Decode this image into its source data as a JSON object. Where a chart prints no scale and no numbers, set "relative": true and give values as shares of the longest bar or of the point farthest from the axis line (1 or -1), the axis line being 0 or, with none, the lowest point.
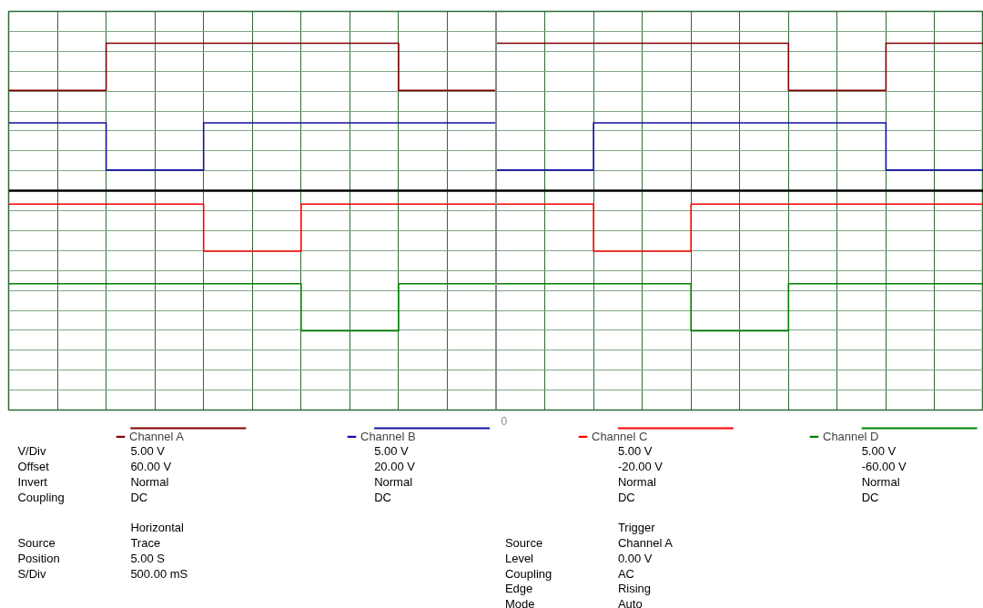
{
  "chart_data": {
    "type": "step",
    "relative": true,
    "grid": true,
    "legend": "bottom",
    "categories": [
      null,
      null,
      null,
      null,
      null,
      null,
      null,
      null,
      null,
      null,
      null,
      null,
      null,
      null,
      null,
      null,
      null,
      null,
      null,
      null,
      null
    ],
    "series": [
      {
        "name": "Channel A",
        "color": "#800000",
        "values": [
          0.68,
          0.68,
          1,
          1,
          1,
          1,
          1,
          1,
          0.68,
          0.68,
          1,
          1,
          1,
          1,
          1,
          1,
          0.68,
          0.68,
          1,
          1,
          1
        ]
      },
      {
        "name": "Channel B",
        "color": "#1010a0",
        "values": [
          0.46,
          0.46,
          0.14,
          0.14,
          0.46,
          0.46,
          0.46,
          0.46,
          0.46,
          0.46,
          0.14,
          0.14,
          0.46,
          0.46,
          0.46,
          0.46,
          0.46,
          0.46,
          0.14,
          0.14,
          0.14
        ]
      },
      {
        "name": "Channel C",
        "color": "#ff0000",
        "values": [
          -0.09,
          -0.09,
          -0.09,
          -0.09,
          -0.41,
          -0.41,
          -0.09,
          -0.09,
          -0.09,
          -0.09,
          -0.09,
          -0.09,
          -0.41,
          -0.41,
          -0.09,
          -0.09,
          -0.09,
          -0.09,
          -0.09,
          -0.09,
          -0.09
        ]
      },
      {
        "name": "Channel D",
        "color": "#008000",
        "values": [
          -0.63,
          -0.63,
          -0.63,
          -0.63,
          -0.63,
          -0.63,
          -0.95,
          -0.95,
          -0.63,
          -0.63,
          -0.63,
          -0.63,
          -0.63,
          -0.63,
          -0.95,
          -0.95,
          -0.63,
          -0.63,
          -0.63,
          -0.63,
          -0.63
        ]
      }
    ],
    "annotations": [
      "0",
      "V/Div",
      "Offset",
      "Invert",
      "Coupling",
      "5.00 V",
      "60.00 V",
      "Normal",
      "DC",
      "5.00 V",
      "20.00 V",
      "Normal",
      "DC",
      "5.00 V",
      "-20.00 V",
      "Normal",
      "DC",
      "5.00 V",
      "-60.00 V",
      "Normal",
      "DC",
      "Horizontal",
      "Source",
      "Position",
      "S/Div",
      "Trace",
      "5.00 S",
      "500.00 mS",
      "Trigger",
      "Source",
      "Level",
      "Coupling",
      "Edge",
      "Mode",
      "Channel A",
      "0.00 V",
      "AC",
      "Rising",
      "Auto"
    ]
  }
}
